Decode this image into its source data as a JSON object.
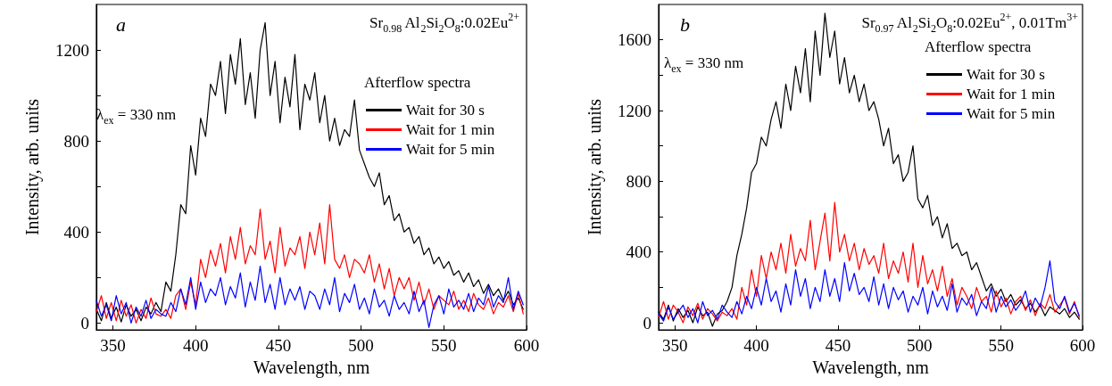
{
  "chart_data": [
    {
      "type": "line",
      "xlabel": "Wavelength, nm",
      "ylabel": "Intensity, arb. units",
      "legend_title": "Afterflow spectra",
      "legend": "top right",
      "marker": "none",
      "line_style": "solid",
      "annotations": [
        "a",
        "Sr$_{0.98}$ Al$_{2}$Si$_{2}$O$_{8}$:0.02Eu$^{2+}$",
        "λ$_{ex}$ = 330 nm"
      ],
      "xlim": [
        340,
        600
      ],
      "xticks": [
        350,
        400,
        450,
        500,
        550,
        600
      ],
      "ylim": [
        -30,
        1400
      ],
      "yticks": [
        0,
        {
          "value": 200,
          "label": null
        },
        400,
        {
          "value": 600,
          "label": null
        },
        800,
        {
          "value": 1000,
          "label": null
        },
        1200
      ],
      "x": [
        340,
        343,
        346,
        349,
        352,
        355,
        358,
        361,
        364,
        367,
        370,
        373,
        376,
        379,
        382,
        385,
        388,
        391,
        394,
        397,
        400,
        403,
        406,
        409,
        412,
        415,
        418,
        421,
        424,
        427,
        430,
        433,
        436,
        439,
        442,
        445,
        448,
        451,
        454,
        457,
        460,
        463,
        466,
        469,
        472,
        475,
        478,
        481,
        484,
        487,
        490,
        493,
        496,
        499,
        502,
        505,
        508,
        511,
        514,
        517,
        520,
        523,
        526,
        529,
        532,
        535,
        538,
        541,
        544,
        547,
        550,
        553,
        556,
        559,
        562,
        565,
        568,
        571,
        574,
        577,
        580,
        583,
        586,
        589,
        592,
        595,
        598
      ],
      "series": [
        {
          "name": "Wait for 30 s",
          "color": "#000000",
          "values": [
            60,
            10,
            90,
            20,
            70,
            5,
            80,
            30,
            60,
            10,
            70,
            40,
            90,
            50,
            180,
            140,
            300,
            520,
            480,
            780,
            650,
            900,
            820,
            1050,
            1000,
            1150,
            920,
            1180,
            1050,
            1250,
            960,
            1100,
            900,
            1200,
            1320,
            1000,
            1150,
            880,
            1080,
            950,
            1180,
            850,
            1050,
            980,
            1100,
            880,
            1000,
            800,
            900,
            780,
            850,
            820,
            980,
            760,
            700,
            640,
            600,
            660,
            520,
            560,
            450,
            480,
            400,
            420,
            350,
            380,
            300,
            330,
            260,
            290,
            240,
            270,
            210,
            230,
            180,
            220,
            160,
            190,
            130,
            170,
            120,
            150,
            100,
            140,
            80,
            110,
            60
          ]
        },
        {
          "name": "Wait for 1 min",
          "color": "#ff0000",
          "values": [
            50,
            120,
            20,
            90,
            10,
            100,
            30,
            80,
            0,
            60,
            20,
            110,
            40,
            30,
            60,
            20,
            120,
            150,
            60,
            180,
            80,
            280,
            200,
            320,
            250,
            350,
            220,
            380,
            280,
            420,
            260,
            340,
            300,
            500,
            280,
            360,
            220,
            420,
            250,
            330,
            300,
            380,
            240,
            400,
            300,
            440,
            260,
            520,
            280,
            240,
            300,
            200,
            280,
            260,
            220,
            300,
            180,
            260,
            150,
            240,
            120,
            200,
            150,
            200,
            100,
            180,
            80,
            150,
            60,
            120,
            100,
            80,
            140,
            60,
            100,
            50,
            130,
            80,
            60,
            110,
            40,
            90,
            70,
            120,
            50,
            130,
            40
          ]
        },
        {
          "name": "Wait for 5 min",
          "color": "#0000ff",
          "values": [
            100,
            30,
            80,
            10,
            120,
            40,
            90,
            0,
            70,
            30,
            100,
            20,
            60,
            40,
            30,
            90,
            50,
            150,
            80,
            200,
            60,
            180,
            90,
            150,
            120,
            200,
            80,
            160,
            110,
            220,
            70,
            180,
            100,
            250,
            90,
            170,
            60,
            200,
            80,
            150,
            100,
            160,
            60,
            140,
            120,
            60,
            150,
            80,
            200,
            50,
            130,
            90,
            170,
            60,
            110,
            40,
            150,
            70,
            100,
            30,
            120,
            60,
            90,
            40,
            140,
            50,
            100,
            -20,
            80,
            120,
            40,
            150,
            70,
            100,
            60,
            130,
            50,
            110,
            80,
            160,
            70,
            120,
            90,
            200,
            60,
            140,
            80
          ]
        }
      ]
    },
    {
      "type": "line",
      "xlabel": "Wavelength, nm",
      "ylabel": "Intensity, arb. units",
      "legend_title": "Afterflow spectra",
      "legend": "top right",
      "marker": "none",
      "line_style": "solid",
      "annotations": [
        "b",
        "Sr$_{0.97}$ Al$_{2}$Si$_{2}$O$_{8}$:0.02Eu$^{2+}$, 0.01Tm$^{3+}$",
        "λ$_{ex}$ = 330 nm"
      ],
      "xlim": [
        340,
        600
      ],
      "xticks": [
        350,
        400,
        450,
        500,
        550,
        600
      ],
      "ylim": [
        -40,
        1800
      ],
      "yticks": [
        0,
        {
          "value": 200,
          "label": null
        },
        400,
        {
          "value": 600,
          "label": null
        },
        800,
        {
          "value": 1000,
          "label": null
        },
        1200,
        {
          "value": 1400,
          "label": null
        },
        1600
      ],
      "x": [
        340,
        343,
        346,
        349,
        352,
        355,
        358,
        361,
        364,
        367,
        370,
        373,
        376,
        379,
        382,
        385,
        388,
        391,
        394,
        397,
        400,
        403,
        406,
        409,
        412,
        415,
        418,
        421,
        424,
        427,
        430,
        433,
        436,
        439,
        442,
        445,
        448,
        451,
        454,
        457,
        460,
        463,
        466,
        469,
        472,
        475,
        478,
        481,
        484,
        487,
        490,
        493,
        496,
        499,
        502,
        505,
        508,
        511,
        514,
        517,
        520,
        523,
        526,
        529,
        532,
        535,
        538,
        541,
        544,
        547,
        550,
        553,
        556,
        559,
        562,
        565,
        568,
        571,
        574,
        577,
        580,
        583,
        586,
        589,
        592,
        595,
        598
      ],
      "series": [
        {
          "name": "Wait for 30 s",
          "color": "#000000",
          "values": [
            60,
            20,
            100,
            10,
            80,
            30,
            70,
            0,
            90,
            40,
            60,
            -20,
            50,
            70,
            120,
            200,
            380,
            500,
            650,
            850,
            900,
            1050,
            1000,
            1150,
            1250,
            1100,
            1350,
            1200,
            1450,
            1300,
            1550,
            1250,
            1650,
            1400,
            1750,
            1500,
            1650,
            1350,
            1500,
            1300,
            1400,
            1250,
            1350,
            1200,
            1250,
            1150,
            1000,
            1100,
            900,
            950,
            800,
            850,
            1000,
            700,
            650,
            720,
            550,
            600,
            480,
            560,
            420,
            450,
            380,
            400,
            300,
            340,
            260,
            180,
            220,
            150,
            190,
            120,
            160,
            100,
            130,
            80,
            110,
            60,
            100,
            40,
            90,
            70,
            50,
            80,
            30,
            60,
            20
          ]
        },
        {
          "name": "Wait for 1 min",
          "color": "#ff0000",
          "values": [
            30,
            120,
            20,
            100,
            60,
            0,
            90,
            40,
            110,
            20,
            80,
            50,
            10,
            60,
            40,
            80,
            20,
            200,
            100,
            300,
            150,
            380,
            250,
            400,
            300,
            450,
            280,
            500,
            320,
            420,
            350,
            580,
            300,
            460,
            620,
            350,
            680,
            400,
            500,
            350,
            450,
            300,
            420,
            330,
            380,
            280,
            450,
            250,
            350,
            280,
            400,
            230,
            450,
            200,
            380,
            220,
            300,
            180,
            320,
            150,
            250,
            100,
            200,
            150,
            80,
            200,
            120,
            150,
            60,
            180,
            90,
            140,
            50,
            120,
            150,
            70,
            130,
            40,
            110,
            80,
            160,
            60,
            100,
            140,
            50,
            120,
            30
          ]
        },
        {
          "name": "Wait for 5 min",
          "color": "#0000ff",
          "values": [
            50,
            10,
            90,
            20,
            60,
            100,
            30,
            80,
            0,
            120,
            40,
            70,
            20,
            100,
            60,
            30,
            120,
            50,
            150,
            80,
            200,
            100,
            250,
            120,
            180,
            60,
            220,
            100,
            300,
            150,
            250,
            80,
            200,
            120,
            300,
            150,
            250,
            120,
            340,
            180,
            280,
            160,
            200,
            120,
            260,
            100,
            220,
            80,
            200,
            130,
            180,
            60,
            150,
            100,
            200,
            50,
            180,
            90,
            150,
            70,
            220,
            60,
            140,
            100,
            160,
            40,
            120,
            80,
            200,
            60,
            150,
            90,
            130,
            70,
            110,
            180,
            60,
            140,
            90,
            200,
            350,
            120,
            80,
            150,
            60,
            110,
            40
          ]
        }
      ]
    }
  ]
}
